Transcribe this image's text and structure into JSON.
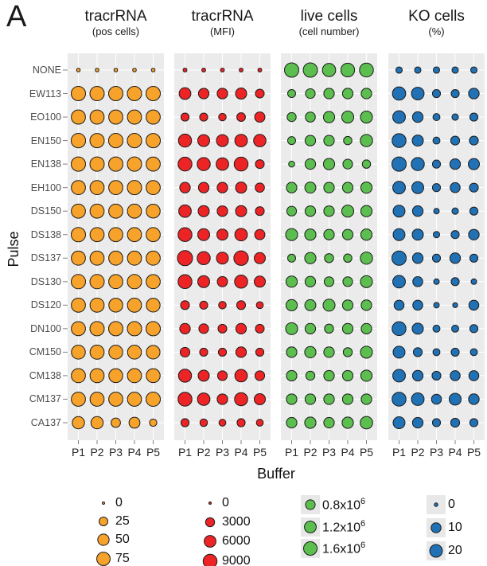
{
  "figure_label": "A",
  "chart_data": {
    "type": "bubble-matrix",
    "x_axis_title": "Buffer",
    "y_axis_title": "Pulse",
    "x_categories": [
      "P1",
      "P2",
      "P3",
      "P4",
      "P5"
    ],
    "y_categories": [
      "NONE",
      "EW113",
      "EO100",
      "EN150",
      "EN138",
      "EH100",
      "DS150",
      "DS138",
      "DS137",
      "DS130",
      "DS120",
      "DN100",
      "CM150",
      "CM138",
      "CM137",
      "CA137"
    ],
    "grid": true,
    "panel_bg": "#ebebeb",
    "grid_color": "#ffffff",
    "dot_stroke": "#1a1a1a",
    "panels": [
      {
        "title": "tracrRNA",
        "subtitle": "(pos cells)",
        "color": "#f6a22b",
        "legend": {
          "values": [
            0,
            25,
            50,
            75
          ],
          "labels": [
            "0",
            "25",
            "50",
            "75"
          ],
          "key_bg": false
        },
        "size_scale": {
          "vmin": 0,
          "vmax": 95,
          "rmin": 1.5,
          "rmax": 9.3
        },
        "values": [
          [
            1,
            1,
            1,
            1,
            1
          ],
          [
            88,
            88,
            88,
            88,
            88
          ],
          [
            85,
            85,
            85,
            85,
            85
          ],
          [
            90,
            88,
            90,
            90,
            88
          ],
          [
            88,
            88,
            88,
            88,
            85
          ],
          [
            85,
            85,
            85,
            88,
            85
          ],
          [
            85,
            85,
            85,
            85,
            82
          ],
          [
            88,
            85,
            85,
            85,
            85
          ],
          [
            85,
            85,
            85,
            85,
            85
          ],
          [
            88,
            88,
            85,
            88,
            85
          ],
          [
            85,
            85,
            82,
            85,
            80
          ],
          [
            85,
            88,
            88,
            88,
            88
          ],
          [
            82,
            85,
            82,
            82,
            78
          ],
          [
            85,
            85,
            82,
            85,
            82
          ],
          [
            85,
            85,
            85,
            85,
            88
          ],
          [
            60,
            60,
            30,
            45,
            15
          ]
        ]
      },
      {
        "title": "tracrRNA",
        "subtitle": "(MFI)",
        "color": "#ec2426",
        "legend": {
          "values": [
            0,
            3000,
            6000,
            9000
          ],
          "labels": [
            "0",
            "3000",
            "6000",
            "9000"
          ],
          "key_bg": false
        },
        "size_scale": {
          "vmin": 0,
          "vmax": 11000,
          "rmin": 1.5,
          "rmax": 9.5
        },
        "values": [
          [
            150,
            150,
            150,
            150,
            150
          ],
          [
            6000,
            4500,
            4500,
            5200,
            2800
          ],
          [
            2200,
            2200,
            1800,
            2600,
            4200
          ],
          [
            7800,
            6200,
            6200,
            7000,
            6800
          ],
          [
            9000,
            7800,
            7000,
            9000,
            2800
          ],
          [
            4500,
            4500,
            4500,
            5200,
            3200
          ],
          [
            7000,
            5200,
            4500,
            5200,
            2800
          ],
          [
            9000,
            6200,
            5200,
            7000,
            4200
          ],
          [
            11000,
            7800,
            6200,
            10000,
            5200
          ],
          [
            9000,
            6200,
            4200,
            7800,
            5200
          ],
          [
            2800,
            2200,
            1800,
            2800,
            1400
          ],
          [
            4500,
            3600,
            2800,
            4500,
            2800
          ],
          [
            3600,
            2200,
            2200,
            4500,
            2200
          ],
          [
            7800,
            5200,
            3600,
            7000,
            3600
          ],
          [
            9000,
            7000,
            4500,
            7800,
            5200
          ],
          [
            2200,
            1800,
            1400,
            2200,
            1400
          ]
        ]
      },
      {
        "title": "live cells",
        "subtitle": "(cell number)",
        "color": "#5cbe4f",
        "legend": {
          "values": [
            0.8,
            1.2,
            1.6
          ],
          "labels": [
            "0.8x10^6",
            "1.2x10^6",
            "1.6x10^6"
          ],
          "key_bg": true
        },
        "size_scale": {
          "vmin": 0.2,
          "vmax": 1.9,
          "rmin": 1.5,
          "rmax": 9.2
        },
        "values": [
          [
            1.8,
            1.8,
            1.55,
            1.65,
            1.7
          ],
          [
            0.55,
            0.8,
            0.95,
            0.95,
            0.95
          ],
          [
            0.7,
            0.85,
            1.1,
            1.25,
            1.25
          ],
          [
            0.55,
            0.95,
            0.95,
            0.6,
            1.3
          ],
          [
            0.35,
            0.95,
            1.1,
            0.8,
            0.6
          ],
          [
            0.95,
            1.05,
            0.95,
            0.95,
            1.1
          ],
          [
            0.8,
            0.95,
            0.95,
            1.25,
            1.1
          ],
          [
            1.25,
            1.1,
            0.95,
            0.95,
            1.1
          ],
          [
            0.55,
            1.1,
            0.7,
            0.6,
            1.3
          ],
          [
            1.1,
            0.95,
            0.8,
            0.8,
            1.25
          ],
          [
            1.1,
            1.05,
            1.25,
            0.95,
            0.95
          ],
          [
            1.25,
            0.95,
            0.7,
            0.95,
            0.95
          ],
          [
            0.95,
            1.1,
            0.95,
            0.7,
            1.25
          ],
          [
            0.95,
            0.7,
            0.95,
            0.95,
            1.1
          ],
          [
            0.95,
            0.95,
            0.95,
            0.95,
            0.95
          ],
          [
            0.95,
            1.1,
            0.95,
            1.1,
            1.35
          ]
        ]
      },
      {
        "title": "KO cells",
        "subtitle": "(%)",
        "color": "#2171b5",
        "legend": {
          "values": [
            0,
            10,
            20
          ],
          "labels": [
            "0",
            "10",
            "20"
          ],
          "key_bg": true
        },
        "size_scale": {
          "vmin": 0,
          "vmax": 28,
          "rmin": 2.2,
          "rmax": 9.0
        },
        "values": [
          [
            2,
            2,
            2,
            2,
            2
          ],
          [
            23,
            20,
            5,
            5,
            12
          ],
          [
            20,
            12,
            3,
            2,
            5
          ],
          [
            26,
            14,
            3,
            7,
            7
          ],
          [
            28,
            22,
            5,
            12,
            14
          ],
          [
            20,
            17,
            5,
            10,
            7
          ],
          [
            17,
            12,
            1,
            2,
            5
          ],
          [
            17,
            14,
            2,
            5,
            12
          ],
          [
            28,
            12,
            5,
            12,
            5
          ],
          [
            20,
            10,
            1,
            5,
            1
          ],
          [
            10,
            10,
            1,
            0.5,
            10
          ],
          [
            26,
            14,
            3,
            3,
            5
          ],
          [
            17,
            7,
            3,
            5,
            3
          ],
          [
            20,
            12,
            7,
            10,
            10
          ],
          [
            26,
            20,
            10,
            17,
            12
          ],
          [
            17,
            12,
            5,
            7,
            5
          ]
        ]
      }
    ]
  }
}
